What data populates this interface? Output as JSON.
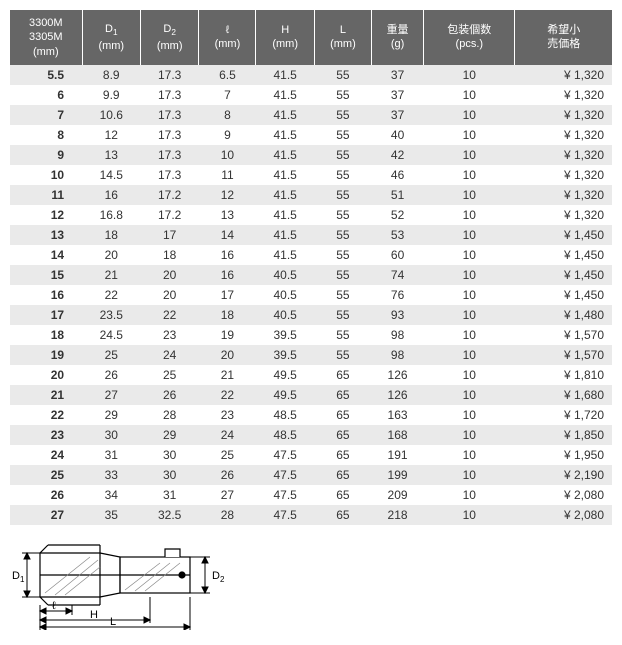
{
  "table": {
    "background_odd": "#eaeaea",
    "background_even": "#ffffff",
    "header_bg": "#666666",
    "header_fg": "#ffffff",
    "columns": [
      {
        "key": "size",
        "label_line1": "3300M",
        "label_line2": "3305M",
        "label_line3": "(mm)"
      },
      {
        "key": "d1",
        "label_line1": "D₁",
        "label_line2": "(mm)"
      },
      {
        "key": "d2",
        "label_line1": "D₂",
        "label_line2": "(mm)"
      },
      {
        "key": "l",
        "label_line1": "ℓ",
        "label_line2": "(mm)"
      },
      {
        "key": "h",
        "label_line1": "H",
        "label_line2": "(mm)"
      },
      {
        "key": "lg",
        "label_line1": "L",
        "label_line2": "(mm)"
      },
      {
        "key": "weight",
        "label_line1": "重量",
        "label_line2": "(g)"
      },
      {
        "key": "pcs",
        "label_line1": "包装個数",
        "label_line2": "(pcs.)"
      },
      {
        "key": "price",
        "label_line1": "希望小",
        "label_line2": "売価格"
      }
    ],
    "rows": [
      {
        "size": "5.5",
        "d1": "8.9",
        "d2": "17.3",
        "l": "6.5",
        "h": "41.5",
        "lg": "55",
        "weight": "37",
        "pcs": "10",
        "price": "¥ 1,320"
      },
      {
        "size": "6",
        "d1": "9.9",
        "d2": "17.3",
        "l": "7",
        "h": "41.5",
        "lg": "55",
        "weight": "37",
        "pcs": "10",
        "price": "¥ 1,320"
      },
      {
        "size": "7",
        "d1": "10.6",
        "d2": "17.3",
        "l": "8",
        "h": "41.5",
        "lg": "55",
        "weight": "37",
        "pcs": "10",
        "price": "¥ 1,320"
      },
      {
        "size": "8",
        "d1": "12",
        "d2": "17.3",
        "l": "9",
        "h": "41.5",
        "lg": "55",
        "weight": "40",
        "pcs": "10",
        "price": "¥ 1,320"
      },
      {
        "size": "9",
        "d1": "13",
        "d2": "17.3",
        "l": "10",
        "h": "41.5",
        "lg": "55",
        "weight": "42",
        "pcs": "10",
        "price": "¥ 1,320"
      },
      {
        "size": "10",
        "d1": "14.5",
        "d2": "17.3",
        "l": "11",
        "h": "41.5",
        "lg": "55",
        "weight": "46",
        "pcs": "10",
        "price": "¥ 1,320"
      },
      {
        "size": "11",
        "d1": "16",
        "d2": "17.2",
        "l": "12",
        "h": "41.5",
        "lg": "55",
        "weight": "51",
        "pcs": "10",
        "price": "¥ 1,320"
      },
      {
        "size": "12",
        "d1": "16.8",
        "d2": "17.2",
        "l": "13",
        "h": "41.5",
        "lg": "55",
        "weight": "52",
        "pcs": "10",
        "price": "¥ 1,320"
      },
      {
        "size": "13",
        "d1": "18",
        "d2": "17",
        "l": "14",
        "h": "41.5",
        "lg": "55",
        "weight": "53",
        "pcs": "10",
        "price": "¥ 1,450"
      },
      {
        "size": "14",
        "d1": "20",
        "d2": "18",
        "l": "16",
        "h": "41.5",
        "lg": "55",
        "weight": "60",
        "pcs": "10",
        "price": "¥ 1,450"
      },
      {
        "size": "15",
        "d1": "21",
        "d2": "20",
        "l": "16",
        "h": "40.5",
        "lg": "55",
        "weight": "74",
        "pcs": "10",
        "price": "¥ 1,450"
      },
      {
        "size": "16",
        "d1": "22",
        "d2": "20",
        "l": "17",
        "h": "40.5",
        "lg": "55",
        "weight": "76",
        "pcs": "10",
        "price": "¥ 1,450"
      },
      {
        "size": "17",
        "d1": "23.5",
        "d2": "22",
        "l": "18",
        "h": "40.5",
        "lg": "55",
        "weight": "93",
        "pcs": "10",
        "price": "¥ 1,480"
      },
      {
        "size": "18",
        "d1": "24.5",
        "d2": "23",
        "l": "19",
        "h": "39.5",
        "lg": "55",
        "weight": "98",
        "pcs": "10",
        "price": "¥ 1,570"
      },
      {
        "size": "19",
        "d1": "25",
        "d2": "24",
        "l": "20",
        "h": "39.5",
        "lg": "55",
        "weight": "98",
        "pcs": "10",
        "price": "¥ 1,570"
      },
      {
        "size": "20",
        "d1": "26",
        "d2": "25",
        "l": "21",
        "h": "49.5",
        "lg": "65",
        "weight": "126",
        "pcs": "10",
        "price": "¥ 1,810"
      },
      {
        "size": "21",
        "d1": "27",
        "d2": "26",
        "l": "22",
        "h": "49.5",
        "lg": "65",
        "weight": "126",
        "pcs": "10",
        "price": "¥ 1,680"
      },
      {
        "size": "22",
        "d1": "29",
        "d2": "28",
        "l": "23",
        "h": "48.5",
        "lg": "65",
        "weight": "163",
        "pcs": "10",
        "price": "¥ 1,720"
      },
      {
        "size": "23",
        "d1": "30",
        "d2": "29",
        "l": "24",
        "h": "48.5",
        "lg": "65",
        "weight": "168",
        "pcs": "10",
        "price": "¥ 1,850"
      },
      {
        "size": "24",
        "d1": "31",
        "d2": "30",
        "l": "25",
        "h": "47.5",
        "lg": "65",
        "weight": "191",
        "pcs": "10",
        "price": "¥ 1,950"
      },
      {
        "size": "25",
        "d1": "33",
        "d2": "30",
        "l": "26",
        "h": "47.5",
        "lg": "65",
        "weight": "199",
        "pcs": "10",
        "price": "¥ 2,190"
      },
      {
        "size": "26",
        "d1": "34",
        "d2": "31",
        "l": "27",
        "h": "47.5",
        "lg": "65",
        "weight": "209",
        "pcs": "10",
        "price": "¥ 2,080"
      },
      {
        "size": "27",
        "d1": "35",
        "d2": "32.5",
        "l": "28",
        "h": "47.5",
        "lg": "65",
        "weight": "218",
        "pcs": "10",
        "price": "¥ 2,080"
      }
    ]
  },
  "diagram": {
    "labels": {
      "d1": "D₁",
      "d2": "D₂",
      "l": "ℓ",
      "h": "H",
      "lg": "L"
    },
    "stroke": "#000000",
    "hatch": "#888888"
  }
}
